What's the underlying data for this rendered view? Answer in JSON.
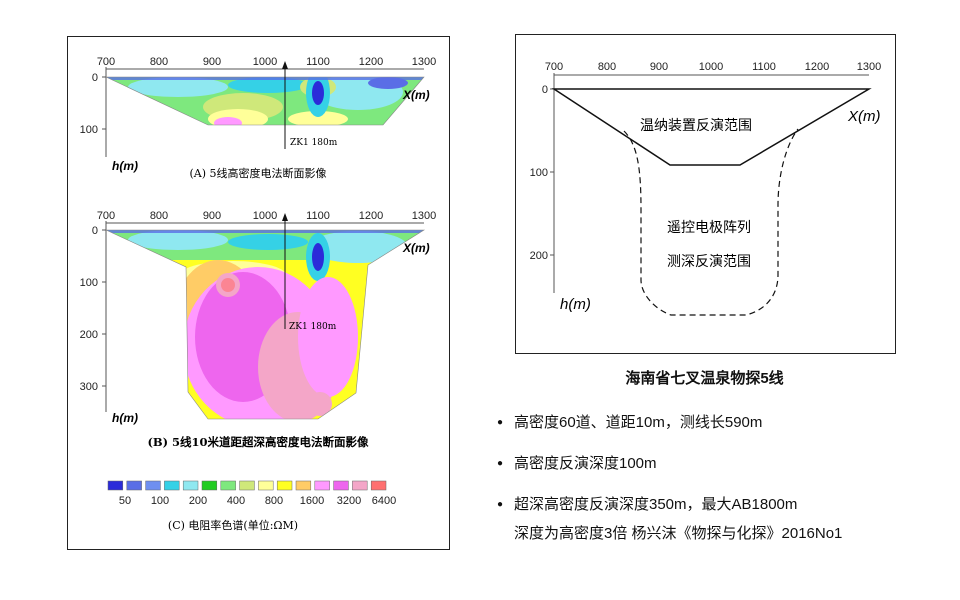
{
  "left": {
    "x_ticks": [
      "700",
      "800",
      "900",
      "1000",
      "1100",
      "1200",
      "1300"
    ],
    "panel_a": {
      "y_ticks": [
        "0",
        "100"
      ],
      "x_label": "X(m)",
      "y_label": "h(m)",
      "borehole": "ZK1 180m",
      "caption": "(A) 5线高密度电法断面影像"
    },
    "panel_b": {
      "y_ticks": [
        "0",
        "100",
        "200",
        "300"
      ],
      "x_label": "X(m)",
      "y_label": "h(m)",
      "borehole": "ZK1 180m",
      "caption": "(B) 5线10米道距超深高密度电法断面影像"
    },
    "legend": {
      "colors": [
        "#2b2bd9",
        "#5a6ee6",
        "#6f8ff0",
        "#35d1e6",
        "#8fe8f0",
        "#22cc22",
        "#7ee87e",
        "#cfe87a",
        "#ffff99",
        "#ffff22",
        "#ffcc66",
        "#ff99ff",
        "#ee66ee",
        "#f4a6c8",
        "#ff7070"
      ],
      "labels": [
        "50",
        "100",
        "200",
        "400",
        "800",
        "1600",
        "3200",
        "6400"
      ],
      "caption": "(C) 电阻率色谱(单位:ΩM)"
    }
  },
  "right": {
    "x_ticks": [
      "700",
      "800",
      "900",
      "1000",
      "1100",
      "1200",
      "1300"
    ],
    "y_ticks": [
      "0",
      "100",
      "200"
    ],
    "x_label": "X(m)",
    "y_label": "h(m)",
    "label_wenner": "温纳装置反演范围",
    "label_remote_1": "遥控电极阵列",
    "label_remote_2": "测深反演范围",
    "caption": "海南省七叉温泉物探5线"
  },
  "bullets": [
    "高密度60道、道距10m，测线长590m",
    "高密度反演深度100m",
    "超深高密度反演深度350m，最大AB1800m"
  ],
  "bullet_continuation": "深度为高密度3倍  杨兴沫《物探与化探》2016No1"
}
